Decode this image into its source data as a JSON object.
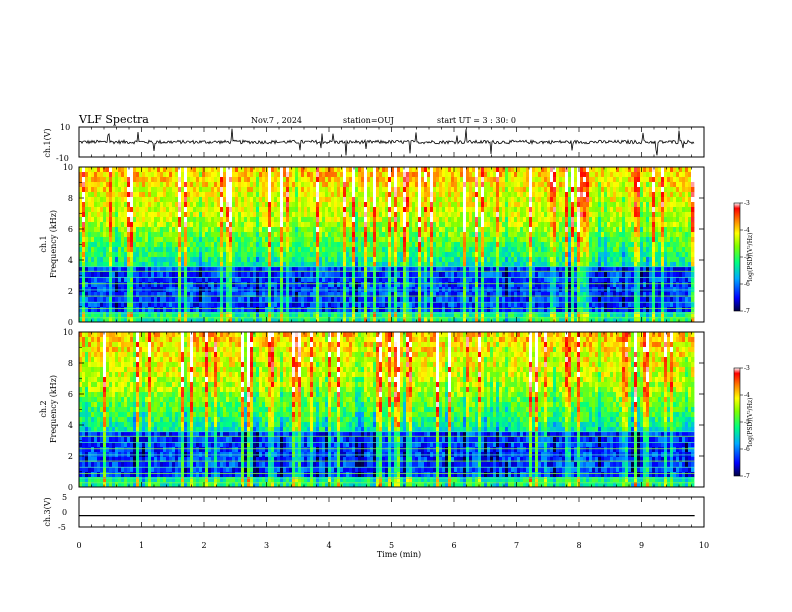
{
  "header": {
    "title": "VLF Spectra",
    "date": "Nov.7 , 2024",
    "station": "station=OUJ",
    "start_ut": "start UT = 3 : 30: 0"
  },
  "chart_data": [
    {
      "type": "line",
      "name": "waveform-ch1",
      "ylabel": "ch.1(V)",
      "ylim": [
        -10,
        10
      ],
      "y_ticks": [
        "10",
        "-10"
      ],
      "baseline_value": 0
    },
    {
      "type": "heatmap",
      "name": "spectrogram-ch1",
      "ylabel": "ch.1\nFrequency (kHz)",
      "ylabel_line1": "ch.1",
      "ylabel_line2": "Frequency (kHz)",
      "ylim": [
        0,
        10
      ],
      "y_ticks": [
        "0",
        "2",
        "4",
        "6",
        "8",
        "10"
      ],
      "colorbar": {
        "label": "log(PSD)(V²/Hz)",
        "range": [
          -7,
          -3
        ],
        "ticks": [
          "-3",
          "-4",
          "-5",
          "-6",
          "-7"
        ],
        "colors": [
          "#000040",
          "#0000ff",
          "#00aaff",
          "#00ff80",
          "#80ff00",
          "#ffff00",
          "#ff8000",
          "#ff0000",
          "#ffffff"
        ]
      }
    },
    {
      "type": "heatmap",
      "name": "spectrogram-ch2",
      "ylabel_line1": "ch.2",
      "ylabel_line2": "Frequency (kHz)",
      "ylim": [
        0,
        10
      ],
      "y_ticks": [
        "0",
        "2",
        "4",
        "6",
        "8",
        "10"
      ],
      "colorbar": {
        "label": "log(PSD)(V²/Hz)",
        "range": [
          -7,
          -3
        ],
        "ticks": [
          "-3",
          "-4",
          "-5",
          "-6",
          "-7"
        ]
      }
    },
    {
      "type": "line",
      "name": "waveform-ch3",
      "ylabel": "ch.3(V)",
      "ylim": [
        -5,
        5
      ],
      "y_ticks": [
        "5",
        "0",
        "-5"
      ],
      "baseline_value": -1.2
    }
  ],
  "x_axis": {
    "xlabel": "Time (min)",
    "xlim": [
      0,
      10
    ],
    "ticks": [
      "0",
      "1",
      "2",
      "3",
      "4",
      "5",
      "6",
      "7",
      "8",
      "9",
      "10"
    ],
    "data_end": 9.85
  }
}
